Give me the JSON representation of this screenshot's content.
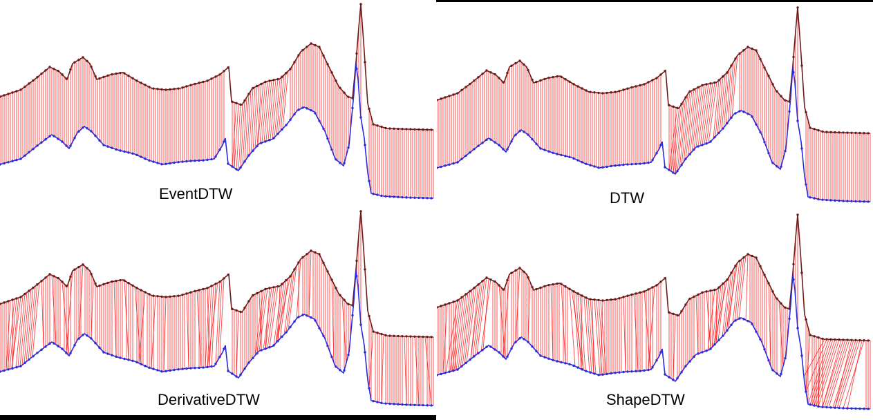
{
  "panels": [
    {
      "label": "EventDTW",
      "variant": 0
    },
    {
      "label": "DTW",
      "variant": 1
    },
    {
      "label": "DerivativeDTW",
      "variant": 2
    },
    {
      "label": "ShapeDTW",
      "variant": 3
    }
  ],
  "colors": {
    "top_series": "#6b1a1a",
    "bottom_series": "#2a2ad8",
    "alignment_lines": "#ff0000",
    "border": "#000000",
    "background": "#ffffff"
  }
}
